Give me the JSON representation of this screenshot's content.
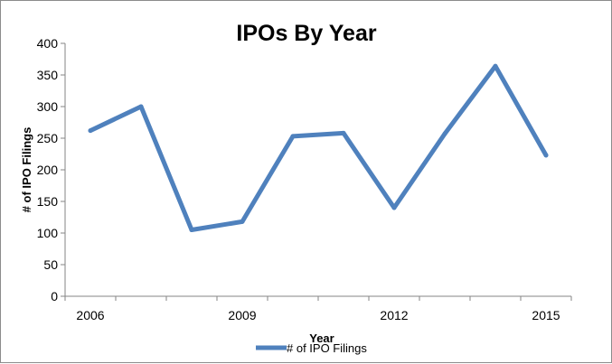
{
  "chart_data": {
    "type": "line",
    "title": "IPOs By Year",
    "xlabel": "Year",
    "ylabel": "# of IPO Filings",
    "x": [
      2006,
      2007,
      2008,
      2009,
      2010,
      2011,
      2012,
      2013,
      2014,
      2015
    ],
    "x_tick_labels": [
      "2006",
      "2009",
      "2012",
      "2015"
    ],
    "x_tick_values": [
      2006,
      2009,
      2012,
      2015
    ],
    "y_ticks": [
      0,
      50,
      100,
      150,
      200,
      250,
      300,
      350,
      400
    ],
    "ylim": [
      0,
      400
    ],
    "grid": false,
    "legend_position": "bottom",
    "series": [
      {
        "name": "# of IPO Filings",
        "color": "#4f81bd",
        "values": [
          262,
          300,
          105,
          118,
          253,
          258,
          140,
          257,
          364,
          223
        ]
      }
    ]
  }
}
